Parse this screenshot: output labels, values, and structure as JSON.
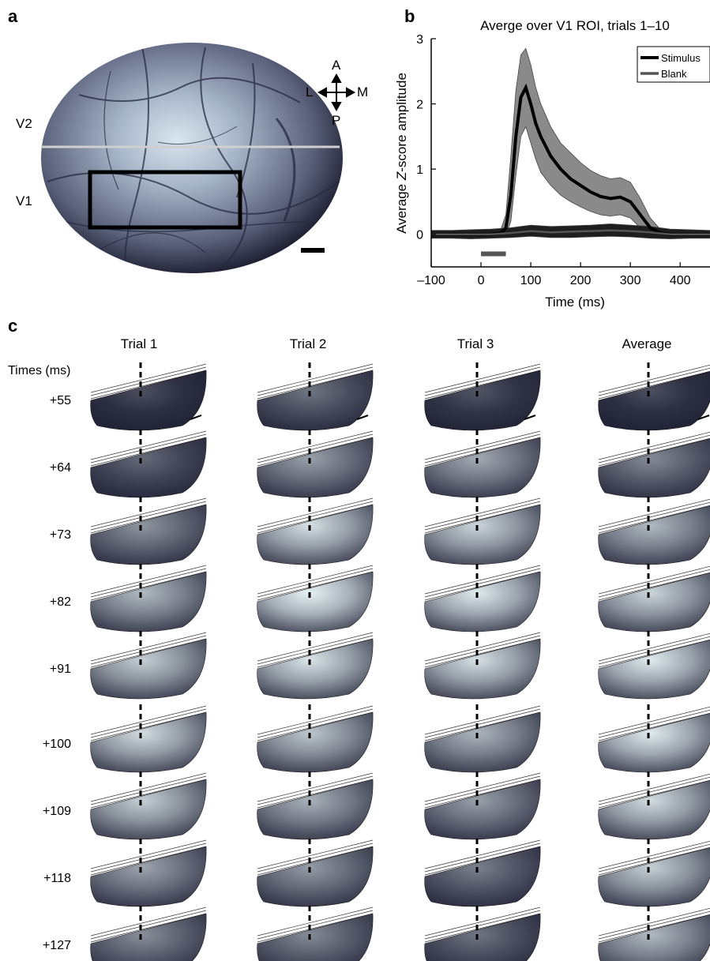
{
  "panel_a": {
    "label": "a",
    "region_upper": "V2",
    "region_lower": "V1",
    "compass": {
      "anterior": "A",
      "posterior": "P",
      "lateral": "L",
      "medial": "M"
    }
  },
  "panel_b": {
    "label": "b"
  },
  "chart_data": {
    "type": "line",
    "title": "Averge over V1 ROI, trials 1–10",
    "xlabel": "Time (ms)",
    "ylabel_prefix": "Average ",
    "ylabel_italic": "Z",
    "ylabel_suffix": "-score amplitude",
    "xlim": [
      -100,
      460
    ],
    "ylim": [
      -0.5,
      3
    ],
    "xticks": [
      -100,
      0,
      100,
      200,
      300,
      400
    ],
    "xtick_labels": [
      "–100",
      "0",
      "100",
      "200",
      "300",
      "400"
    ],
    "yticks": [
      0,
      1,
      2,
      3
    ],
    "ytick_labels": [
      "0",
      "1",
      "2",
      "3"
    ],
    "legend_placement": "top-right",
    "stimulus_bar": {
      "start": 0,
      "end": 50,
      "y": -0.3
    },
    "series": [
      {
        "name": "Stimulus",
        "color": "#000000",
        "band_color": "#8a8a8a",
        "x": [
          -100,
          -80,
          -60,
          -40,
          -20,
          0,
          20,
          40,
          50,
          60,
          70,
          80,
          90,
          100,
          110,
          120,
          140,
          160,
          180,
          200,
          220,
          240,
          260,
          280,
          300,
          320,
          340,
          360,
          380,
          400,
          420,
          440,
          460
        ],
        "y": [
          0,
          0,
          0,
          0,
          0,
          0,
          0,
          0.02,
          0.1,
          0.6,
          1.5,
          2.1,
          2.25,
          2.0,
          1.7,
          1.5,
          1.2,
          1.0,
          0.85,
          0.75,
          0.65,
          0.58,
          0.55,
          0.57,
          0.5,
          0.3,
          0.1,
          0.02,
          0,
          0,
          0,
          0,
          0
        ],
        "lower": [
          -0.05,
          -0.05,
          -0.05,
          -0.05,
          -0.05,
          -0.05,
          -0.05,
          -0.04,
          -0.02,
          0.2,
          0.9,
          1.5,
          1.65,
          1.4,
          1.15,
          0.95,
          0.75,
          0.6,
          0.5,
          0.42,
          0.35,
          0.3,
          0.28,
          0.3,
          0.25,
          0.1,
          0,
          -0.03,
          -0.05,
          -0.05,
          -0.05,
          -0.05,
          -0.05
        ],
        "upper": [
          0.05,
          0.05,
          0.05,
          0.05,
          0.05,
          0.05,
          0.05,
          0.08,
          0.3,
          1.2,
          2.2,
          2.75,
          2.85,
          2.6,
          2.25,
          2.0,
          1.65,
          1.4,
          1.25,
          1.1,
          0.98,
          0.9,
          0.85,
          0.87,
          0.8,
          0.55,
          0.25,
          0.08,
          0.05,
          0.05,
          0.05,
          0.05,
          0.05
        ]
      },
      {
        "name": "Blank",
        "color": "#555555",
        "band_color": "#1e1e1e",
        "x": [
          -100,
          -60,
          -20,
          20,
          60,
          100,
          140,
          180,
          220,
          260,
          300,
          340,
          380,
          420,
          460
        ],
        "y": [
          0,
          0,
          0,
          0,
          0.02,
          0.05,
          0.03,
          0.04,
          0.05,
          0.06,
          0.05,
          0.03,
          0,
          0,
          0
        ],
        "lower": [
          -0.06,
          -0.06,
          -0.07,
          -0.06,
          -0.05,
          -0.03,
          -0.05,
          -0.05,
          -0.04,
          -0.03,
          -0.04,
          -0.06,
          -0.07,
          -0.06,
          -0.06
        ],
        "upper": [
          0.06,
          0.06,
          0.07,
          0.08,
          0.1,
          0.14,
          0.12,
          0.13,
          0.14,
          0.16,
          0.14,
          0.12,
          0.08,
          0.07,
          0.06
        ]
      }
    ]
  },
  "panel_c": {
    "label": "c",
    "times_header": "Times (ms)",
    "columns": [
      {
        "label": "Trial 1",
        "scale_bar": true,
        "intensity": [
          0.12,
          0.25,
          0.45,
          0.62,
          0.72,
          0.78,
          0.72,
          0.52,
          0.42
        ]
      },
      {
        "label": "Trial 2",
        "scale_bar": true,
        "intensity": [
          0.3,
          0.5,
          0.8,
          0.92,
          0.82,
          0.68,
          0.58,
          0.48,
          0.4
        ]
      },
      {
        "label": "Trial 3",
        "scale_bar": true,
        "intensity": [
          0.15,
          0.55,
          0.75,
          0.85,
          0.8,
          0.6,
          0.5,
          0.35,
          0.3
        ]
      },
      {
        "label": "Average",
        "scale_bar": true,
        "intensity": [
          0.12,
          0.4,
          0.62,
          0.75,
          0.85,
          0.85,
          0.78,
          0.72,
          0.62
        ]
      }
    ],
    "times": [
      "+55",
      "+64",
      "+73",
      "+82",
      "+91",
      "+100",
      "+109",
      "+118",
      "+127"
    ]
  }
}
